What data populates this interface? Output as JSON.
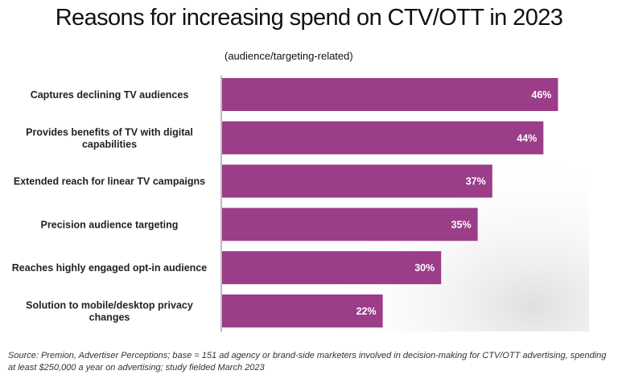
{
  "chart_data": {
    "type": "bar",
    "orientation": "horizontal",
    "title": "Reasons for increasing spend on CTV/OTT in 2023",
    "subtitle": "(audience/targeting-related)",
    "categories": [
      "Captures declining TV audiences",
      "Provides benefits of TV with digital capabilities",
      "Extended reach for linear TV campaigns",
      "Precision audience targeting",
      "Reaches highly engaged opt-in audience",
      "Solution to mobile/desktop privacy changes"
    ],
    "category_lines": [
      [
        "Captures declining TV audiences"
      ],
      [
        "Provides benefits of TV with digital",
        "capabilities"
      ],
      [
        "Extended reach for linear TV campaigns"
      ],
      [
        "Precision audience targeting"
      ],
      [
        "Reaches highly engaged opt-in audience"
      ],
      [
        "Solution to mobile/desktop privacy",
        "changes"
      ]
    ],
    "values": [
      46,
      44,
      37,
      35,
      30,
      22
    ],
    "value_labels": [
      "46%",
      "44%",
      "37%",
      "35%",
      "30%",
      "22%"
    ],
    "xlim": [
      0,
      50
    ],
    "bar_color": "#9b3d88",
    "label_color": "#ffffff",
    "grid": false,
    "legend": "none"
  },
  "footnote": "Source: Premion, Advertiser Perceptions; base = 151 ad agency or brand-side marketers involved in decision-making for CTV/OTT advertising, spending at least $250,000 a year on advertising; study fielded March 2023"
}
